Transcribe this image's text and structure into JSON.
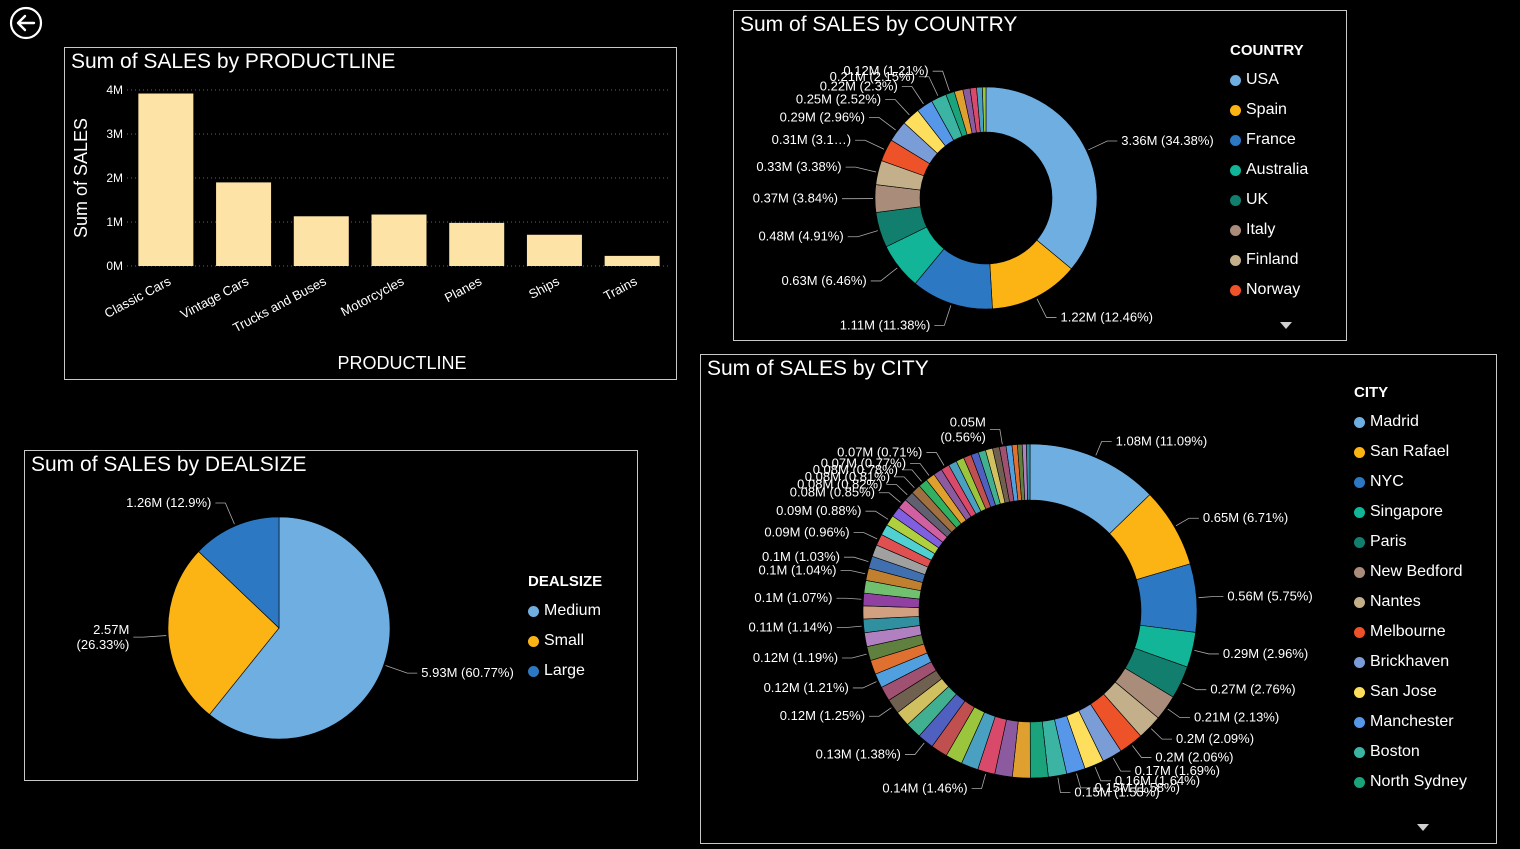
{
  "back_icon": "back-arrow-icon",
  "colors": {
    "bar": "#FDE3A6",
    "palette": [
      "#6FAEE0",
      "#FBB413",
      "#2C78C3",
      "#12B597",
      "#127F6E",
      "#A98D7A",
      "#C3B08B",
      "#ED5229",
      "#7A9DD8",
      "#FDDF5D",
      "#5797EA",
      "#3CB4A4",
      "#1BA37C"
    ]
  },
  "productline": {
    "chart_data": {
      "type": "bar",
      "title": "Sum of SALES by PRODUCTLINE",
      "xlabel": "PRODUCTLINE",
      "ylabel": "Sum of SALES",
      "categories": [
        "Classic Cars",
        "Vintage Cars",
        "Trucks and Buses",
        "Motorcycles",
        "Planes",
        "Ships",
        "Trains"
      ],
      "values": [
        3.92,
        1.9,
        1.13,
        1.17,
        0.98,
        0.71,
        0.23
      ],
      "unit": "M",
      "ylim": [
        0,
        4
      ],
      "yticks": [
        "0M",
        "1M",
        "2M",
        "3M",
        "4M"
      ],
      "grid": true
    }
  },
  "country": {
    "chart_data": {
      "type": "pie",
      "donut": true,
      "title": "Sum of SALES by COUNTRY",
      "legend_title": "COUNTRY",
      "legend": [
        "USA",
        "Spain",
        "France",
        "Australia",
        "UK",
        "Italy",
        "Finland",
        "Norway"
      ],
      "slices": [
        {
          "name": "USA",
          "value": 34.38,
          "label": "3.36M (34.38%)"
        },
        {
          "name": "Spain",
          "value": 12.46,
          "label": "1.22M (12.46%)"
        },
        {
          "name": "France",
          "value": 11.38,
          "label": "1.11M (11.38%)"
        },
        {
          "name": "Australia",
          "value": 6.46,
          "label": "0.63M (6.46%)"
        },
        {
          "name": "UK",
          "value": 4.91,
          "label": "0.48M (4.91%)"
        },
        {
          "name": "Italy",
          "value": 3.84,
          "label": "0.37M (3.84%)"
        },
        {
          "name": "Finland",
          "value": 3.38,
          "label": "0.33M (3.38%)"
        },
        {
          "name": "Norway",
          "value": 3.1,
          "label": "0.31M (3.1…)"
        },
        {
          "name": "",
          "value": 2.96,
          "label": "0.29M (2.96%)"
        },
        {
          "name": "",
          "value": 2.52,
          "label": "0.25M (2.52%)"
        },
        {
          "name": "",
          "value": 2.3,
          "label": "0.22M (2.3%)"
        },
        {
          "name": "",
          "value": 2.15,
          "label": "0.21M (2.15%)"
        },
        {
          "name": "",
          "value": 1.21,
          "label": "0.12M (1.21%)"
        },
        {
          "name": "",
          "value": 1.2,
          "label": ""
        },
        {
          "name": "",
          "value": 1.0,
          "label": ""
        },
        {
          "name": "",
          "value": 0.9,
          "label": ""
        },
        {
          "name": "",
          "value": 0.8,
          "label": ""
        },
        {
          "name": "",
          "value": 0.5,
          "label": ""
        }
      ]
    }
  },
  "dealsize": {
    "chart_data": {
      "type": "pie",
      "title": "Sum of SALES by DEALSIZE",
      "legend_title": "DEALSIZE",
      "legend": [
        "Medium",
        "Small",
        "Large"
      ],
      "slices": [
        {
          "name": "Medium",
          "value": 60.77,
          "label": "5.93M (60.77%)"
        },
        {
          "name": "Small",
          "value": 26.33,
          "label1": "2.57M",
          "label2": "(26.33%)"
        },
        {
          "name": "Large",
          "value": 12.9,
          "label": "1.26M (12.9%)"
        }
      ]
    }
  },
  "city": {
    "chart_data": {
      "type": "pie",
      "donut": true,
      "title": "Sum of SALES by CITY",
      "legend_title": "CITY",
      "legend": [
        "Madrid",
        "San Rafael",
        "NYC",
        "Singapore",
        "Paris",
        "New Bedford",
        "Nantes",
        "Melbourne",
        "Brickhaven",
        "San Jose",
        "Manchester",
        "Boston",
        "North Sydney"
      ],
      "slices": [
        {
          "name": "Madrid",
          "value": 11.09,
          "label": "1.08M (11.09%)"
        },
        {
          "name": "San Rafael",
          "value": 6.71,
          "label": "0.65M (6.71%)"
        },
        {
          "name": "NYC",
          "value": 5.75,
          "label": "0.56M (5.75%)"
        },
        {
          "name": "Singapore",
          "value": 2.96,
          "label": "0.29M (2.96%)"
        },
        {
          "name": "Paris",
          "value": 2.76,
          "label": "0.27M (2.76%)"
        },
        {
          "name": "New Bedford",
          "value": 2.13,
          "label": "0.21M (2.13%)"
        },
        {
          "name": "Nantes",
          "value": 2.09,
          "label": "0.2M (2.09%)"
        },
        {
          "name": "Melbourne",
          "value": 2.06,
          "label": "0.2M (2.06%)"
        },
        {
          "name": "Brickhaven",
          "value": 1.69,
          "label": "0.17M (1.69%)"
        },
        {
          "name": "San Jose",
          "value": 1.64,
          "label": "0.16M (1.64%)"
        },
        {
          "name": "Manchester",
          "value": 1.58,
          "label": "0.15M (1.58%)"
        },
        {
          "name": "Boston",
          "value": 1.55,
          "label": "0.15M (1.55%)"
        },
        {
          "name": "North Sydney",
          "value": 1.5,
          "label": ""
        },
        {
          "name": "",
          "value": 1.5,
          "label": ""
        },
        {
          "name": "",
          "value": 1.48,
          "label": ""
        },
        {
          "name": "",
          "value": 1.46,
          "label": "0.14M (1.46%)"
        },
        {
          "name": "",
          "value": 1.44,
          "label": ""
        },
        {
          "name": "",
          "value": 1.42,
          "label": ""
        },
        {
          "name": "",
          "value": 1.4,
          "label": ""
        },
        {
          "name": "",
          "value": 1.38,
          "label": "0.13M (1.38%)"
        },
        {
          "name": "",
          "value": 1.35,
          "label": ""
        },
        {
          "name": "",
          "value": 1.3,
          "label": ""
        },
        {
          "name": "",
          "value": 1.25,
          "label": "0.12M (1.25%)"
        },
        {
          "name": "",
          "value": 1.23,
          "label": ""
        },
        {
          "name": "",
          "value": 1.21,
          "label": "0.12M (1.21%)"
        },
        {
          "name": "",
          "value": 1.2,
          "label": ""
        },
        {
          "name": "",
          "value": 1.19,
          "label": "0.12M (1.19%)"
        },
        {
          "name": "",
          "value": 1.17,
          "label": ""
        },
        {
          "name": "",
          "value": 1.14,
          "label": "0.11M (1.14%)"
        },
        {
          "name": "",
          "value": 1.1,
          "label": ""
        },
        {
          "name": "",
          "value": 1.07,
          "label": "0.1M (1.07%)"
        },
        {
          "name": "",
          "value": 1.06,
          "label": ""
        },
        {
          "name": "",
          "value": 1.04,
          "label": "0.1M (1.04%)"
        },
        {
          "name": "",
          "value": 1.03,
          "label": "0.1M (1.03%)"
        },
        {
          "name": "",
          "value": 1.0,
          "label": ""
        },
        {
          "name": "",
          "value": 0.96,
          "label": "0.09M (0.96%)"
        },
        {
          "name": "",
          "value": 0.92,
          "label": ""
        },
        {
          "name": "",
          "value": 0.88,
          "label": "0.09M (0.88%)"
        },
        {
          "name": "",
          "value": 0.86,
          "label": ""
        },
        {
          "name": "",
          "value": 0.85,
          "label": "0.08M (0.85%)"
        },
        {
          "name": "",
          "value": 0.82,
          "label": "0.08M (0.82%)"
        },
        {
          "name": "",
          "value": 0.81,
          "label": "0.08M (0.81%)"
        },
        {
          "name": "",
          "value": 0.78,
          "label": "0.08M (0.78%)"
        },
        {
          "name": "",
          "value": 0.77,
          "label": "0.07M (0.77%)"
        },
        {
          "name": "",
          "value": 0.74,
          "label": ""
        },
        {
          "name": "",
          "value": 0.71,
          "label": "0.07M (0.71%)"
        },
        {
          "name": "",
          "value": 0.7,
          "label": ""
        },
        {
          "name": "",
          "value": 0.68,
          "label": ""
        },
        {
          "name": "",
          "value": 0.66,
          "label": ""
        },
        {
          "name": "",
          "value": 0.64,
          "label": ""
        },
        {
          "name": "",
          "value": 0.62,
          "label": ""
        },
        {
          "name": "",
          "value": 0.6,
          "label": ""
        },
        {
          "name": "",
          "value": 0.58,
          "label": ""
        },
        {
          "name": "",
          "value": 0.56,
          "label1": "0.05M",
          "label2": "(0.56%)"
        },
        {
          "name": "",
          "value": 0.5,
          "label": ""
        },
        {
          "name": "",
          "value": 0.45,
          "label": ""
        },
        {
          "name": "",
          "value": 0.4,
          "label": ""
        },
        {
          "name": "",
          "value": 0.35,
          "label": ""
        },
        {
          "name": "",
          "value": 0.3,
          "label": ""
        }
      ]
    }
  }
}
